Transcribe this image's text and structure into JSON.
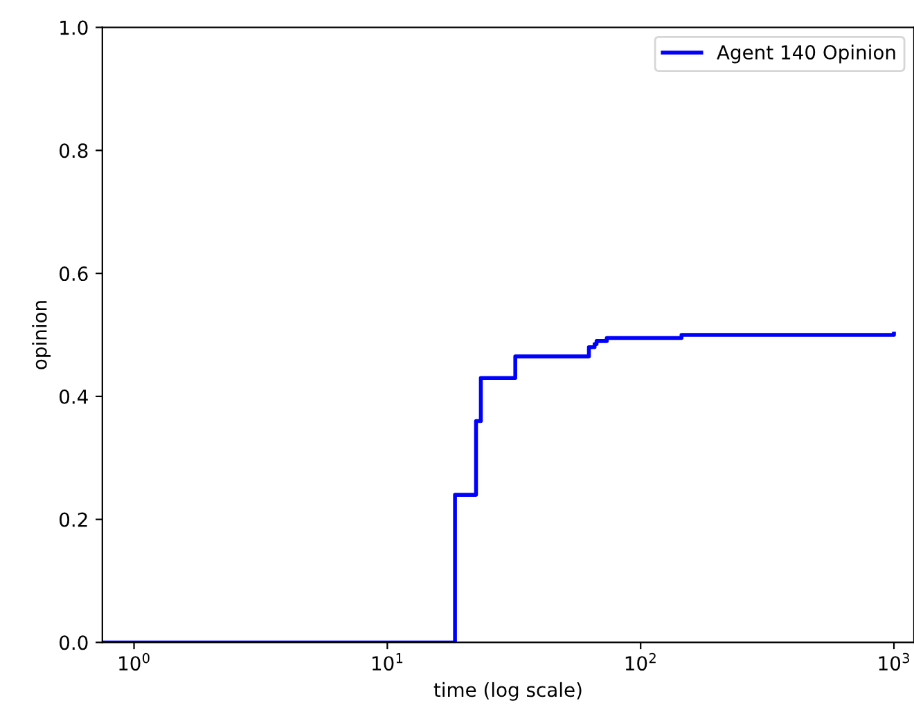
{
  "chart_data": {
    "type": "step",
    "xlabel": "time (log scale)",
    "ylabel": "opinion",
    "log": "x",
    "xlim": [
      0.75,
      1200
    ],
    "ylim": [
      0,
      1
    ],
    "xticks": [
      {
        "value": 1,
        "label": "10$^{0}$"
      },
      {
        "value": 10,
        "label": "10$^{1}$"
      },
      {
        "value": 100,
        "label": "10$^{2}$"
      },
      {
        "value": 1000,
        "label": "10$^{3}$"
      }
    ],
    "yticks": [
      {
        "value": 0,
        "label": "0.0"
      },
      {
        "value": 0.2,
        "label": "0.2"
      },
      {
        "value": 0.4,
        "label": "0.4"
      },
      {
        "value": 0.6,
        "label": "0.6"
      },
      {
        "value": 0.8,
        "label": "0.8"
      },
      {
        "value": 1,
        "label": "1.0"
      }
    ],
    "legend": "top right",
    "grid": false,
    "marker": "none",
    "line_style": "solid",
    "series": [
      {
        "name": "Agent 140 Opinion",
        "color": "#0000ff",
        "x": [
          0.75,
          17.2,
          18.5,
          21.1,
          22.4,
          23.4,
          30.6,
          32.0,
          61,
          62.5,
          65.8,
          67,
          73.5,
          130,
          145,
          1000
        ],
        "values": [
          0,
          0,
          0.24,
          0.24,
          0.36,
          0.43,
          0.43,
          0.465,
          0.465,
          0.48,
          0.485,
          0.49,
          0.495,
          0.495,
          0.5,
          0.502
        ]
      }
    ]
  }
}
